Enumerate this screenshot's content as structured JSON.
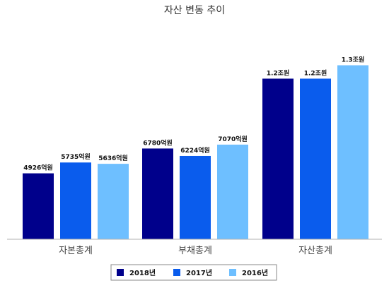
{
  "chart_data": {
    "type": "bar",
    "title": "자산 변동 추이",
    "categories": [
      "자본총계",
      "부채총계",
      "자산총계"
    ],
    "series": [
      {
        "name": "2018년",
        "color": "#00008b",
        "values": [
          4926,
          6780,
          12000
        ],
        "labels": [
          "4926억원",
          "6780억원",
          "1.2조원"
        ]
      },
      {
        "name": "2017년",
        "color": "#0a5ced",
        "values": [
          5735,
          6224,
          12000
        ],
        "labels": [
          "5735억원",
          "6224억원",
          "1.2조원"
        ]
      },
      {
        "name": "2016년",
        "color": "#6ebfff",
        "values": [
          5636,
          7070,
          13000
        ],
        "labels": [
          "5636억원",
          "7070억원",
          "1.3조원"
        ]
      }
    ],
    "unit": "억원",
    "ylim": [
      0,
      13500
    ],
    "grid": false,
    "legend_position": "bottom"
  },
  "colors": {
    "axis": "#b0b0b0",
    "legend_border": "#8a8a8a"
  }
}
